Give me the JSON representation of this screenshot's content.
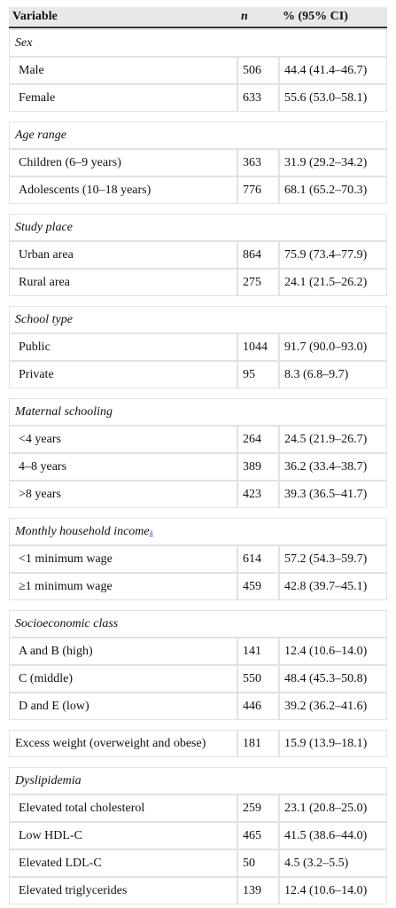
{
  "table": {
    "header": [
      "Variable",
      "n",
      "% (95% CI)"
    ],
    "groups": [
      {
        "title": "Sex",
        "rows": [
          [
            "Male",
            506,
            "44.4 (41.4–46.7)"
          ],
          [
            "Female",
            633,
            "55.6 (53.0–58.1)"
          ]
        ]
      },
      {
        "title": "Age range",
        "rows": [
          [
            "Children (6–9 years)",
            363,
            "31.9 (29.2–34.2)"
          ],
          [
            "Adolescents (10–18 years)",
            776,
            "68.1 (65.2–70.3)"
          ]
        ]
      },
      {
        "title": "Study place",
        "rows": [
          [
            "Urban area",
            864,
            "75.9 (73.4–77.9)"
          ],
          [
            "Rural area",
            275,
            "24.1 (21.5–26.2)"
          ]
        ]
      },
      {
        "title": "School type",
        "rows": [
          [
            "Public",
            1044,
            "91.7 (90.0–93.0)"
          ],
          [
            "Private",
            95,
            "8.3 (6.8–9.7)"
          ]
        ]
      },
      {
        "title": "Maternal schooling",
        "rows": [
          [
            "<4 years",
            264,
            "24.5 (21.9–26.7)"
          ],
          [
            "4–8 years",
            389,
            "36.2 (33.4–38.7)"
          ],
          [
            ">8 years",
            423,
            "39.3 (36.5–41.7)"
          ]
        ]
      },
      {
        "title": "Monthly household income",
        "footnote": "a",
        "rows": [
          [
            "<1 minimum wage",
            614,
            "57.2 (54.3–59.7)"
          ],
          [
            "≥1 minimum wage",
            459,
            "42.8 (39.7–45.1)"
          ]
        ]
      },
      {
        "title": "Socioeconomic class",
        "rows": [
          [
            "A and B (high)",
            141,
            "12.4 (10.6–14.0)"
          ],
          [
            "C (middle)",
            550,
            "48.4 (45.3–50.8)"
          ],
          [
            "D and E (low)",
            446,
            "39.2 (36.2–41.6)"
          ]
        ]
      },
      {
        "rows": [
          [
            "Excess weight (overweight and obese)",
            181,
            "15.9 (13.9–18.1)"
          ]
        ]
      },
      {
        "title": "Dyslipidemia",
        "rows": [
          [
            "Elevated total cholesterol",
            259,
            "23.1 (20.8–25.0)"
          ],
          [
            "Low HDL-C",
            465,
            "41.5 (38.6–44.0)"
          ],
          [
            "Elevated LDL-C",
            50,
            "4.5 (3.2–5.5)"
          ],
          [
            "Elevated triglycerides",
            139,
            "12.4 (10.6–14.0)"
          ]
        ]
      }
    ]
  }
}
